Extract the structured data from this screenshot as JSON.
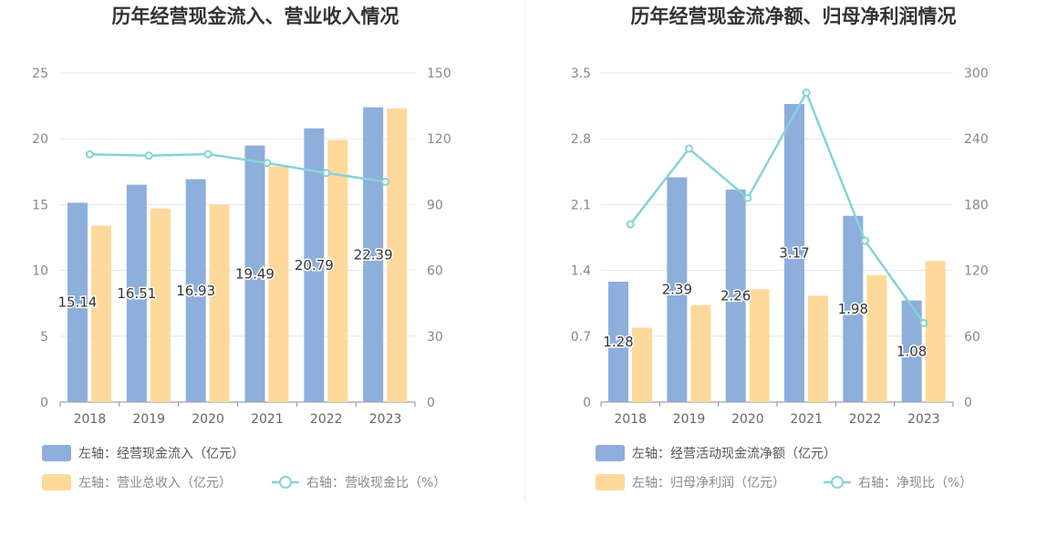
{
  "chart_data": [
    {
      "type": "bar",
      "title": "历年经营现金流入、营业收入情况",
      "categories": [
        "2018",
        "2019",
        "2020",
        "2021",
        "2022",
        "2023"
      ],
      "left_axis": {
        "ylim": [
          0,
          25
        ],
        "ticks": [
          "0",
          "5",
          "10",
          "15",
          "20",
          "25"
        ]
      },
      "right_axis": {
        "ylim": [
          0,
          150
        ],
        "ticks": [
          "0",
          "30",
          "60",
          "90",
          "120",
          "150"
        ]
      },
      "grid": true,
      "legend_position": "bottom",
      "series": [
        {
          "name": "左轴：经营现金流入（亿元）",
          "type": "bar",
          "axis": "left",
          "color": "#8eaedb",
          "values": [
            15.14,
            16.51,
            16.93,
            19.49,
            20.79,
            22.39
          ],
          "labels": [
            "15.14",
            "16.51",
            "16.93",
            "19.49",
            "20.79",
            "22.39"
          ]
        },
        {
          "name": "左轴：营业总收入（亿元）",
          "type": "bar",
          "axis": "left",
          "color": "#ffd99b",
          "values": [
            13.4,
            14.7,
            15.0,
            17.9,
            19.9,
            22.3
          ]
        },
        {
          "name": "右轴：营收现金比（%）",
          "type": "line",
          "axis": "right",
          "color": "#86d3d8",
          "values": [
            112.9,
            112.3,
            113.0,
            108.9,
            104.4,
            100.4
          ]
        }
      ]
    },
    {
      "type": "bar",
      "title": "历年经营现金流净额、归母净利润情况",
      "categories": [
        "2018",
        "2019",
        "2020",
        "2021",
        "2022",
        "2023"
      ],
      "left_axis": {
        "ylim": [
          0,
          3.5
        ],
        "ticks": [
          "0",
          "0.7",
          "1.4",
          "2.1",
          "2.8",
          "3.5"
        ]
      },
      "right_axis": {
        "ylim": [
          0,
          300
        ],
        "ticks": [
          "0",
          "60",
          "120",
          "180",
          "240",
          "300"
        ]
      },
      "grid": true,
      "legend_position": "bottom",
      "series": [
        {
          "name": "左轴：经营活动现金流净额（亿元）",
          "type": "bar",
          "axis": "left",
          "color": "#8eaedb",
          "values": [
            1.28,
            2.39,
            2.26,
            3.17,
            1.98,
            1.08
          ],
          "labels": [
            "1.28",
            "2.39",
            "2.26",
            "3.17",
            "1.98",
            "1.08"
          ]
        },
        {
          "name": "左轴：归母净利润（亿元）",
          "type": "bar",
          "axis": "left",
          "color": "#ffd99b",
          "values": [
            0.79,
            1.03,
            1.2,
            1.13,
            1.35,
            1.5
          ]
        },
        {
          "name": "右轴：净现比（%）",
          "type": "line",
          "axis": "right",
          "color": "#86d3d8",
          "values": [
            162,
            231,
            186,
            282,
            147,
            72
          ]
        }
      ]
    }
  ]
}
